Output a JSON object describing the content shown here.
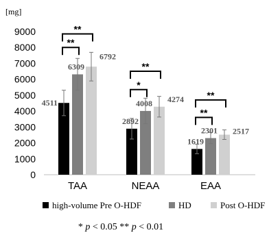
{
  "chart_data": {
    "type": "bar",
    "unit_label": "[mg]",
    "categories": [
      "TAA",
      "NEAA",
      "EAA"
    ],
    "series": [
      {
        "name": "high-volume Pre O-HDF",
        "color": "#000000",
        "values": [
          4511,
          2892,
          1619
        ],
        "errors": [
          800,
          650,
          300
        ]
      },
      {
        "name": "HD",
        "color": "#7f7f7f",
        "values": [
          6309,
          4008,
          2301
        ],
        "errors": [
          1000,
          800,
          350
        ]
      },
      {
        "name": "Post O-HDF",
        "color": "#d0d0d0",
        "values": [
          6792,
          4274,
          2517
        ],
        "errors": [
          900,
          650,
          300
        ]
      }
    ],
    "data_labels": [
      [
        "4511",
        "6309",
        "6792"
      ],
      [
        "2892",
        "4008",
        "4274"
      ],
      [
        "1619",
        "2301",
        "2517"
      ]
    ],
    "yticks": [
      "0",
      "1000",
      "2000",
      "3000",
      "4000",
      "5000",
      "6000",
      "7000",
      "8000",
      "9000"
    ],
    "ylim": [
      0,
      9000
    ],
    "grid": false,
    "legend_position": "bottom",
    "significance": [
      {
        "category": 0,
        "from": 0,
        "to": 1,
        "label": "**",
        "level": 8000
      },
      {
        "category": 0,
        "from": 0,
        "to": 2,
        "label": "**",
        "level": 8850
      },
      {
        "category": 1,
        "from": 0,
        "to": 1,
        "label": "*",
        "level": 5350
      },
      {
        "category": 1,
        "from": 0,
        "to": 2,
        "label": "**",
        "level": 6500
      },
      {
        "category": 2,
        "from": 0,
        "to": 1,
        "label": "**",
        "level": 3600
      },
      {
        "category": 2,
        "from": 0,
        "to": 2,
        "label": "**",
        "level": 4700
      }
    ],
    "footnote": {
      "star1": "*",
      "p1": "p",
      "cond1": " < 0.05 ** ",
      "p2": "p",
      "cond2": " < 0.01"
    }
  }
}
